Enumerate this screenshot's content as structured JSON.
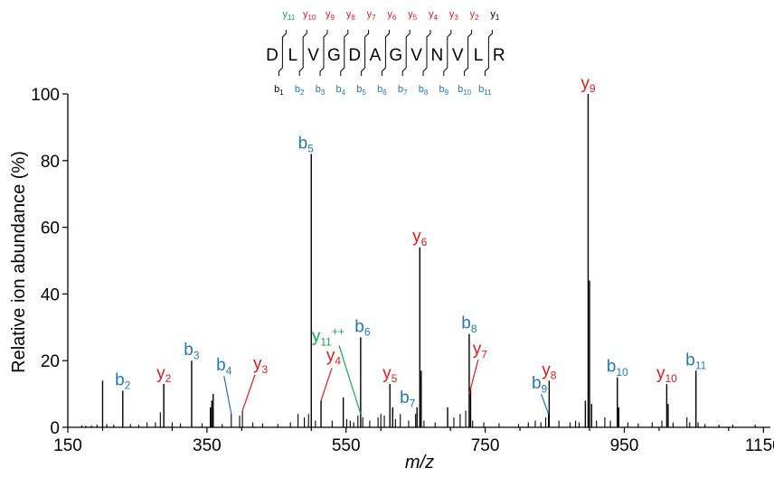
{
  "colors": {
    "b_ion": "#1F78C1",
    "y_ion": "#E31A1C",
    "y_double": "#1AA64A",
    "axis": "#000000"
  },
  "chart_data": {
    "type": "spectrum",
    "xlabel": "m/z",
    "ylabel": "Relative ion abundance (%)",
    "xlim": [
      150,
      1160
    ],
    "ylim": [
      0,
      100
    ],
    "xticks": [
      150,
      350,
      550,
      750,
      950,
      1150
    ],
    "yticks": [
      0,
      20,
      40,
      60,
      80,
      100
    ],
    "grid": false,
    "sequence": [
      "D",
      "L",
      "V",
      "G",
      "D",
      "A",
      "G",
      "V",
      "N",
      "V",
      "L",
      "R"
    ],
    "y_fragments": [
      {
        "text": "y",
        "sub": "11",
        "color": "green"
      },
      {
        "text": "y",
        "sub": "10",
        "color": "red"
      },
      {
        "text": "y",
        "sub": "9",
        "color": "red"
      },
      {
        "text": "y",
        "sub": "8",
        "color": "red"
      },
      {
        "text": "y",
        "sub": "7",
        "color": "red"
      },
      {
        "text": "y",
        "sub": "6",
        "color": "red"
      },
      {
        "text": "y",
        "sub": "5",
        "color": "red"
      },
      {
        "text": "y",
        "sub": "4",
        "color": "red"
      },
      {
        "text": "y",
        "sub": "3",
        "color": "red"
      },
      {
        "text": "y",
        "sub": "2",
        "color": "red"
      },
      {
        "text": "y",
        "sub": "1",
        "color": "black"
      }
    ],
    "b_fragments": [
      {
        "text": "b",
        "sub": "1",
        "color": "black"
      },
      {
        "text": "b",
        "sub": "2",
        "color": "blue"
      },
      {
        "text": "b",
        "sub": "3",
        "color": "blue"
      },
      {
        "text": "b",
        "sub": "4",
        "color": "blue"
      },
      {
        "text": "b",
        "sub": "5",
        "color": "blue"
      },
      {
        "text": "b",
        "sub": "6",
        "color": "blue"
      },
      {
        "text": "b",
        "sub": "7",
        "color": "blue"
      },
      {
        "text": "b",
        "sub": "8",
        "color": "blue"
      },
      {
        "text": "b",
        "sub": "9",
        "color": "blue"
      },
      {
        "text": "b",
        "sub": "10",
        "color": "blue"
      },
      {
        "text": "b",
        "sub": "11",
        "color": "blue"
      }
    ],
    "labeled_peaks": [
      {
        "label": "b",
        "sub": "2",
        "sup": "",
        "ion": "b",
        "mz": 229,
        "intensity": 11
      },
      {
        "label": "y",
        "sub": "2",
        "sup": "",
        "ion": "y",
        "mz": 288,
        "intensity": 13
      },
      {
        "label": "b",
        "sub": "3",
        "sup": "",
        "ion": "b",
        "mz": 328,
        "intensity": 20
      },
      {
        "label": "b",
        "sub": "4",
        "sup": "",
        "ion": "b",
        "mz": 385,
        "intensity": 4
      },
      {
        "label": "y",
        "sub": "3",
        "sup": "",
        "ion": "y",
        "mz": 401,
        "intensity": 5
      },
      {
        "label": "b",
        "sub": "5",
        "sup": "",
        "ion": "b",
        "mz": 500,
        "intensity": 82
      },
      {
        "label": "y",
        "sub": "4",
        "sup": "",
        "ion": "y",
        "mz": 514,
        "intensity": 8
      },
      {
        "label": "y",
        "sub": "11",
        "sup": "++",
        "ion": "y2",
        "mz": 571,
        "intensity": 4
      },
      {
        "label": "b",
        "sub": "6",
        "sup": "",
        "ion": "b",
        "mz": 571,
        "intensity": 27
      },
      {
        "label": "y",
        "sub": "5",
        "sup": "",
        "ion": "y",
        "mz": 613,
        "intensity": 13
      },
      {
        "label": "b",
        "sub": "7",
        "sup": "",
        "ion": "b",
        "mz": 628,
        "intensity": 4
      },
      {
        "label": "y",
        "sub": "6",
        "sup": "",
        "ion": "y",
        "mz": 656,
        "intensity": 54
      },
      {
        "label": "b",
        "sub": "8",
        "sup": "",
        "ion": "b",
        "mz": 727,
        "intensity": 28
      },
      {
        "label": "y",
        "sub": "7",
        "sup": "",
        "ion": "y",
        "mz": 727,
        "intensity": 10
      },
      {
        "label": "b",
        "sub": "9",
        "sup": "",
        "ion": "b",
        "mz": 841,
        "intensity": 4
      },
      {
        "label": "y",
        "sub": "8",
        "sup": "",
        "ion": "y",
        "mz": 842,
        "intensity": 14
      },
      {
        "label": "y",
        "sub": "9",
        "sup": "",
        "ion": "y",
        "mz": 898,
        "intensity": 100
      },
      {
        "label": "b",
        "sub": "10",
        "sup": "",
        "ion": "b",
        "mz": 940,
        "intensity": 15
      },
      {
        "label": "y",
        "sub": "10",
        "sup": "",
        "ion": "y",
        "mz": 1011,
        "intensity": 13
      },
      {
        "label": "b",
        "sub": "11",
        "sup": "",
        "ion": "b",
        "mz": 1053,
        "intensity": 17
      }
    ],
    "peaks": [
      [
        170,
        0.6
      ],
      [
        176,
        0.5
      ],
      [
        184,
        0.6
      ],
      [
        192,
        0.8
      ],
      [
        200,
        14
      ],
      [
        206,
        1.0
      ],
      [
        216,
        0.8
      ],
      [
        229,
        11
      ],
      [
        240,
        1.0
      ],
      [
        252,
        0.8
      ],
      [
        264,
        1.5
      ],
      [
        276,
        1.5
      ],
      [
        283,
        4.5
      ],
      [
        288,
        13
      ],
      [
        300,
        1.5
      ],
      [
        312,
        1.2
      ],
      [
        328,
        20
      ],
      [
        343,
        1.2
      ],
      [
        355,
        6
      ],
      [
        357,
        8
      ],
      [
        359,
        10
      ],
      [
        372,
        1.0
      ],
      [
        385,
        4
      ],
      [
        397,
        3.5
      ],
      [
        401,
        5
      ],
      [
        416,
        1.5
      ],
      [
        430,
        1.2
      ],
      [
        452,
        1.0
      ],
      [
        470,
        1.5
      ],
      [
        481,
        4
      ],
      [
        490,
        3
      ],
      [
        496,
        4
      ],
      [
        500,
        82
      ],
      [
        506,
        2.0
      ],
      [
        514,
        8
      ],
      [
        530,
        2.0
      ],
      [
        546,
        9
      ],
      [
        551,
        2.5
      ],
      [
        556,
        2.0
      ],
      [
        561,
        1.5
      ],
      [
        567,
        3.5
      ],
      [
        571,
        27
      ],
      [
        574,
        3
      ],
      [
        584,
        2.0
      ],
      [
        596,
        3
      ],
      [
        600,
        4
      ],
      [
        605,
        3.5
      ],
      [
        613,
        13
      ],
      [
        617,
        6
      ],
      [
        621,
        2.5
      ],
      [
        628,
        4
      ],
      [
        640,
        2.0
      ],
      [
        650,
        4
      ],
      [
        652,
        6
      ],
      [
        656,
        54
      ],
      [
        658,
        17
      ],
      [
        662,
        2.0
      ],
      [
        678,
        1.5
      ],
      [
        696,
        6
      ],
      [
        705,
        3
      ],
      [
        714,
        4
      ],
      [
        722,
        5
      ],
      [
        727,
        28
      ],
      [
        729,
        12
      ],
      [
        732,
        2.0
      ],
      [
        748,
        1.5
      ],
      [
        770,
        1.2
      ],
      [
        798,
        1.0
      ],
      [
        812,
        1.5
      ],
      [
        822,
        2.0
      ],
      [
        830,
        1.5
      ],
      [
        837,
        3
      ],
      [
        841,
        4
      ],
      [
        842,
        14
      ],
      [
        856,
        2.0
      ],
      [
        872,
        1.5
      ],
      [
        880,
        2.0
      ],
      [
        885,
        1.5
      ],
      [
        894,
        8
      ],
      [
        898,
        100
      ],
      [
        900,
        44
      ],
      [
        903,
        7
      ],
      [
        910,
        2.0
      ],
      [
        922,
        3
      ],
      [
        930,
        2.0
      ],
      [
        940,
        15
      ],
      [
        942,
        6
      ],
      [
        955,
        1.5
      ],
      [
        970,
        1.2
      ],
      [
        990,
        1.5
      ],
      [
        1004,
        2.0
      ],
      [
        1011,
        13
      ],
      [
        1013,
        7
      ],
      [
        1020,
        1.5
      ],
      [
        1040,
        3
      ],
      [
        1044,
        1.5
      ],
      [
        1053,
        17
      ],
      [
        1056,
        1.5
      ],
      [
        1066,
        1.0
      ],
      [
        1086,
        0.8
      ],
      [
        1106,
        0.8
      ],
      [
        1138,
        0.8
      ]
    ]
  }
}
